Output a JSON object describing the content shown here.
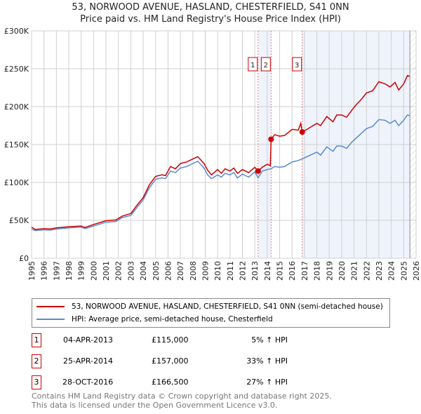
{
  "chart_data": {
    "type": "line",
    "title": "53, NORWOOD AVENUE, HASLAND, CHESTERFIELD, S41 0NN",
    "subtitle": "Price paid vs. HM Land Registry's House Price Index (HPI)",
    "xlim": [
      1995,
      2026
    ],
    "ylim": [
      0,
      300000
    ],
    "yticks": [
      {
        "v": 0,
        "l": "£0"
      },
      {
        "v": 50000,
        "l": "£50K"
      },
      {
        "v": 100000,
        "l": "£100K"
      },
      {
        "v": 150000,
        "l": "£150K"
      },
      {
        "v": 200000,
        "l": "£200K"
      },
      {
        "v": 250000,
        "l": "£250K"
      },
      {
        "v": 300000,
        "l": "£300K"
      }
    ],
    "xticks": [
      "1995",
      "1996",
      "1997",
      "1998",
      "1999",
      "2000",
      "2001",
      "2002",
      "2003",
      "2004",
      "2005",
      "2006",
      "2007",
      "2008",
      "2009",
      "2010",
      "2011",
      "2012",
      "2013",
      "2014",
      "2015",
      "2016",
      "2017",
      "2018",
      "2019",
      "2020",
      "2021",
      "2022",
      "2023",
      "2024",
      "2025",
      "2026"
    ],
    "grid": true,
    "series": [
      {
        "name": "53, NORWOOD AVENUE, HASLAND, CHESTERFIELD, S41 0NN (semi-detached house)",
        "color": "#cc0000",
        "x": [
          1995,
          1995.3,
          1996,
          1996.5,
          1997,
          1998,
          1999,
          1999.3,
          2000,
          2001,
          2001.8,
          2002.3,
          2003,
          2003.5,
          2004,
          2004.5,
          2005,
          2005.5,
          2005.8,
          2006.2,
          2006.6,
          2007,
          2007.5,
          2008,
          2008.4,
          2008.9,
          2009.2,
          2009.5,
          2010,
          2010.3,
          2010.6,
          2011,
          2011.3,
          2011.6,
          2012,
          2012.5,
          2013,
          2013.26,
          2013.6,
          2014,
          2014.25,
          2014.31,
          2014.6,
          2015,
          2015.4,
          2016,
          2016.5,
          2016.7,
          2016.82,
          2017.2,
          2018,
          2018.3,
          2018.8,
          2019.3,
          2019.6,
          2020,
          2020.4,
          2020.8,
          2021.2,
          2021.6,
          2022,
          2022.5,
          2023,
          2023.5,
          2023.9,
          2024.3,
          2024.6,
          2025,
          2025.3,
          2025.5
        ],
        "y": [
          41000,
          38000,
          39000,
          38500,
          40000,
          41500,
          42500,
          40500,
          44500,
          49500,
          50500,
          55500,
          59000,
          70000,
          80000,
          97000,
          108000,
          110000,
          109000,
          121000,
          118000,
          125000,
          127000,
          131000,
          134000,
          125000,
          116000,
          110000,
          117000,
          112000,
          118000,
          115000,
          119000,
          112000,
          117000,
          113000,
          120000,
          115000,
          120000,
          124000,
          122000,
          157000,
          163000,
          161000,
          162000,
          170000,
          169000,
          178000,
          166500,
          170000,
          178000,
          175000,
          187000,
          180000,
          189000,
          189000,
          186000,
          195000,
          203000,
          210000,
          218000,
          221000,
          233000,
          230000,
          226000,
          232000,
          222000,
          230000,
          241000,
          240000
        ]
      },
      {
        "name": "HPI: Average price, semi-detached house, Chesterfield",
        "color": "#5b8bd0",
        "x": [
          1995,
          1995.3,
          1996,
          1996.5,
          1997,
          1998,
          1999,
          1999.3,
          2000,
          2001,
          2001.8,
          2002.3,
          2003,
          2003.5,
          2004,
          2004.5,
          2005,
          2005.5,
          2005.8,
          2006.2,
          2006.6,
          2007,
          2007.5,
          2008,
          2008.4,
          2008.9,
          2009.2,
          2009.5,
          2010,
          2010.3,
          2010.6,
          2011,
          2011.3,
          2011.6,
          2012,
          2012.5,
          2013,
          2013.26,
          2013.6,
          2014,
          2014.31,
          2014.6,
          2015,
          2015.4,
          2016,
          2016.5,
          2016.82,
          2017.2,
          2018,
          2018.3,
          2018.8,
          2019.3,
          2019.6,
          2020,
          2020.4,
          2020.8,
          2021.2,
          2021.6,
          2022,
          2022.5,
          2023,
          2023.5,
          2023.9,
          2024.3,
          2024.6,
          2025,
          2025.3,
          2025.5
        ],
        "y": [
          38500,
          36500,
          37500,
          37000,
          38500,
          40000,
          41000,
          39000,
          42500,
          47500,
          48500,
          53500,
          56500,
          67000,
          77000,
          93000,
          104000,
          106000,
          105000,
          115000,
          113000,
          119000,
          121000,
          125000,
          128000,
          119000,
          110000,
          105000,
          110000,
          107000,
          112000,
          110000,
          113000,
          106000,
          111000,
          107000,
          114000,
          106000,
          115000,
          117000,
          118000,
          121000,
          120000,
          121000,
          127000,
          129000,
          131000,
          134000,
          140000,
          136000,
          147000,
          141000,
          148000,
          148000,
          145000,
          153000,
          159000,
          165000,
          171000,
          174000,
          183000,
          182000,
          178000,
          182000,
          175000,
          182000,
          189000,
          188000
        ]
      }
    ],
    "sales": [
      {
        "n": "1",
        "x": 2013.26,
        "y": 115000
      },
      {
        "n": "2",
        "x": 2014.31,
        "y": 157000
      },
      {
        "n": "3",
        "x": 2016.82,
        "y": 166500
      }
    ],
    "shaded": [
      [
        2013.26,
        2014.31
      ],
      [
        2016.82,
        2025.5
      ]
    ],
    "hatched_from": 2025.5,
    "legend_position": "bottom"
  },
  "table": [
    {
      "n": "1",
      "date": "04-APR-2013",
      "price": "£115,000",
      "hpi": "5% ↑ HPI"
    },
    {
      "n": "2",
      "date": "25-APR-2014",
      "price": "£157,000",
      "hpi": "33% ↑ HPI"
    },
    {
      "n": "3",
      "date": "28-OCT-2016",
      "price": "£166,500",
      "hpi": "27% ↑ HPI"
    }
  ],
  "footer": {
    "line1": "Contains HM Land Registry data © Crown copyright and database right 2025.",
    "line2": "This data is licensed under the Open Government Licence v3.0."
  }
}
